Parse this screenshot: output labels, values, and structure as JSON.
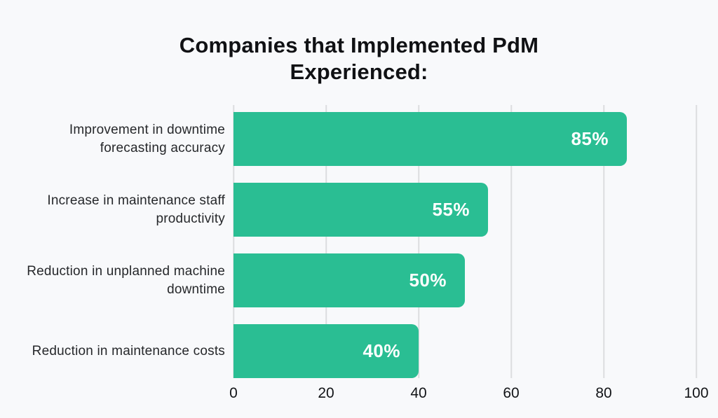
{
  "page": {
    "background_color": "#f8f9fb"
  },
  "chart_data": {
    "type": "bar",
    "orientation": "horizontal",
    "title": "Companies that Implemented PdM Experienced:",
    "categories": [
      "Improvement in downtime forecasting accuracy",
      "Increase in maintenance staff productivity",
      "Reduction in unplanned machine downtime",
      "Reduction in maintenance costs"
    ],
    "values": [
      85,
      55,
      50,
      40
    ],
    "value_labels": [
      "85%",
      "55%",
      "50%",
      "40%"
    ],
    "xlabel": "",
    "ylabel": "",
    "xlim": [
      0,
      100
    ],
    "x_ticks": [
      "0",
      "20",
      "40",
      "60",
      "80",
      "100"
    ],
    "grid": "vertical",
    "legend": "none",
    "colors": {
      "bar": "#2abe93",
      "value_label": "#ffffff",
      "gridline": "#dcdde0",
      "category_text": "#26282b",
      "tick_text": "#121417",
      "title_text": "#101114"
    }
  }
}
